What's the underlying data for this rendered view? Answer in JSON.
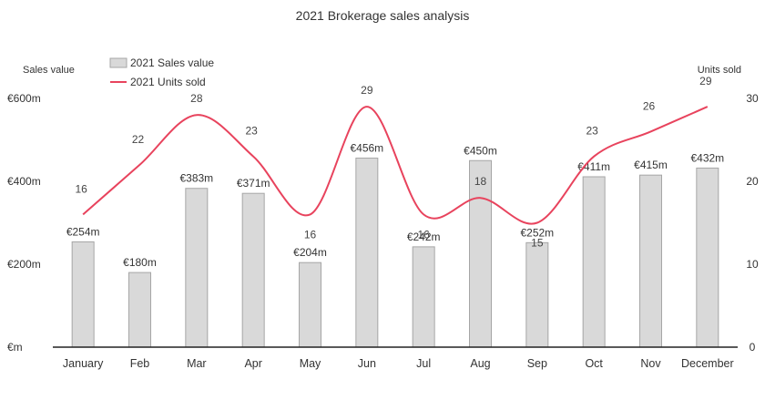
{
  "chart_data": {
    "type": "bar",
    "title": "2021 Brokerage sales analysis",
    "categories": [
      "January",
      "Feb",
      "Mar",
      "Apr",
      "May",
      "Jun",
      "Jul",
      "Aug",
      "Sep",
      "Oct",
      "Nov",
      "December"
    ],
    "series": [
      {
        "name": "2021 Sales value",
        "type": "bar",
        "axis": "left",
        "values": [
          254,
          180,
          383,
          371,
          204,
          456,
          242,
          450,
          252,
          411,
          415,
          432
        ],
        "labels": [
          "€254m",
          "€180m",
          "€383m",
          "€371m",
          "€204m",
          "€456m",
          "€242m",
          "€450m",
          "€252m",
          "€411m",
          "€415m",
          "€432m"
        ],
        "color": "#d9d9d9"
      },
      {
        "name": "2021 Units sold",
        "type": "line",
        "axis": "right",
        "values": [
          16,
          22,
          28,
          23,
          16,
          29,
          16,
          18,
          15,
          23,
          26,
          29
        ],
        "labels": [
          "16",
          "22",
          "28",
          "23",
          "16",
          "29",
          "16",
          "18",
          "15",
          "23",
          "26",
          "29"
        ],
        "color": "#e8435d"
      }
    ],
    "y_left": {
      "label": "Sales value",
      "ylim": [
        0,
        600
      ],
      "ticks": [
        0,
        200,
        400,
        600
      ],
      "tick_labels": [
        "€m",
        "€200m",
        "€400m",
        "€600m"
      ]
    },
    "y_right": {
      "label": "Units sold",
      "ylim": [
        0,
        30
      ],
      "ticks": [
        0,
        10,
        20,
        30
      ],
      "tick_labels": [
        "0",
        "10",
        "20",
        "30"
      ]
    },
    "legend": {
      "position": "top-left",
      "entries": [
        "2021 Sales value",
        "2021 Units sold"
      ]
    },
    "grid": false
  }
}
